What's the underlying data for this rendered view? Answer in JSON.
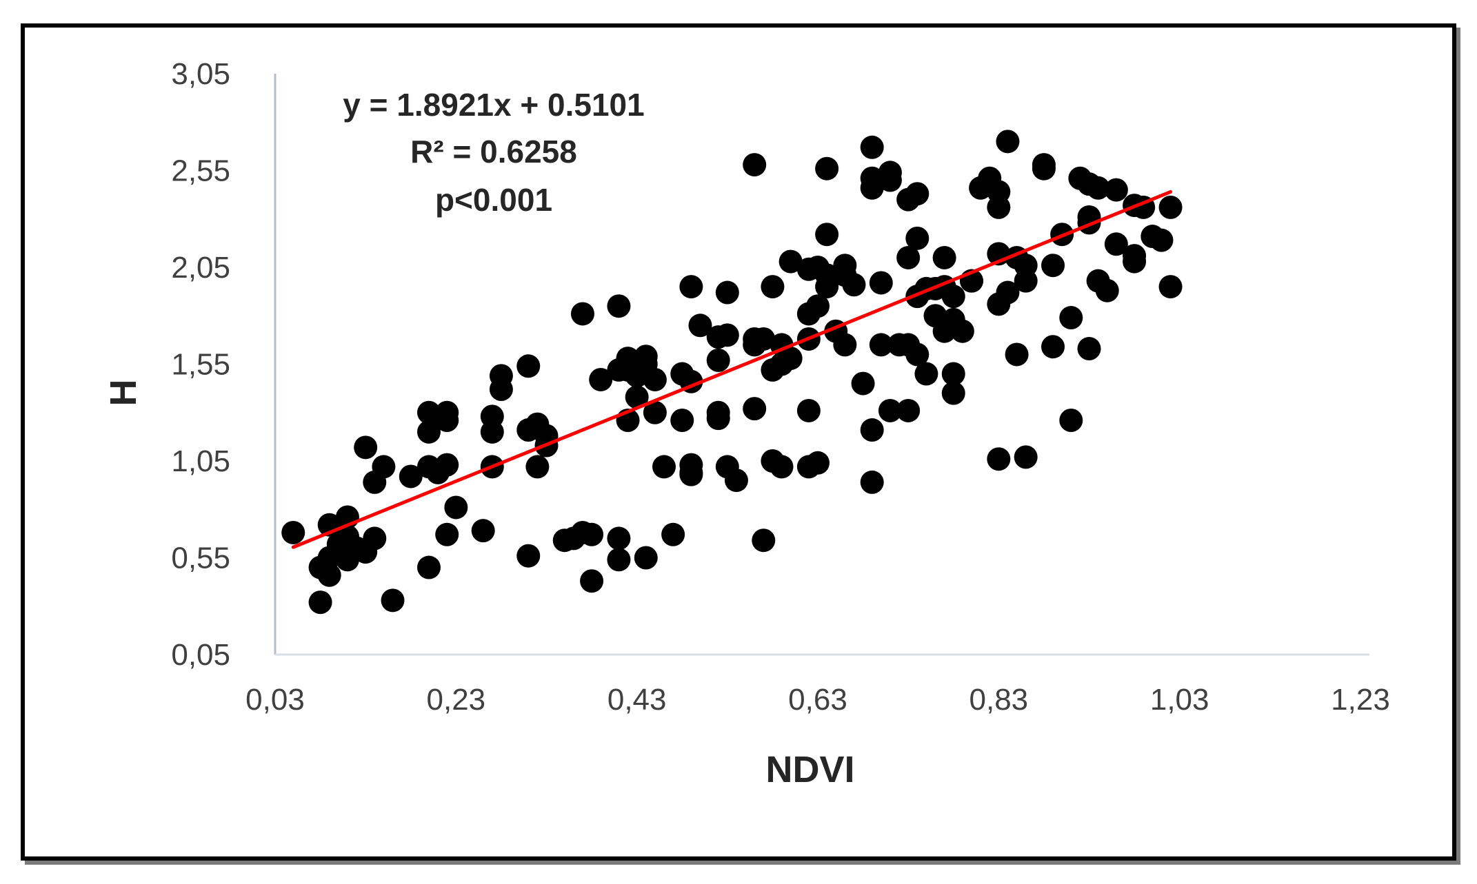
{
  "chart_data": {
    "type": "scatter",
    "xlabel": "NDVI",
    "ylabel": "H",
    "xlim": [
      0.03,
      1.23
    ],
    "ylim": [
      0.05,
      3.05
    ],
    "x_ticks": [
      "0,03",
      "0,23",
      "0,43",
      "0,63",
      "0,83",
      "1,03",
      "1,23"
    ],
    "y_ticks": [
      "0,05",
      "0,55",
      "1,05",
      "1,55",
      "2,05",
      "2,55",
      "3,05"
    ],
    "grid": false,
    "point_color": "#000000",
    "trendline": {
      "slope": 1.8921,
      "intercept": 0.5101,
      "x_range": [
        0.05,
        1.02
      ],
      "color": "#ff0000"
    },
    "annotations": [
      "y = 1.8921x + 0.5101",
      "R² = 0.6258",
      "p<0.001"
    ],
    "points": [
      [
        0.05,
        0.68
      ],
      [
        0.08,
        0.32
      ],
      [
        0.08,
        0.5
      ],
      [
        0.09,
        0.55
      ],
      [
        0.09,
        0.46
      ],
      [
        0.09,
        0.72
      ],
      [
        0.1,
        0.62
      ],
      [
        0.11,
        0.66
      ],
      [
        0.11,
        0.54
      ],
      [
        0.11,
        0.76
      ],
      [
        0.12,
        0.6
      ],
      [
        0.13,
        0.58
      ],
      [
        0.13,
        1.12
      ],
      [
        0.14,
        0.65
      ],
      [
        0.14,
        0.94
      ],
      [
        0.15,
        1.02
      ],
      [
        0.16,
        0.33
      ],
      [
        0.18,
        0.97
      ],
      [
        0.2,
        0.5
      ],
      [
        0.2,
        1.2
      ],
      [
        0.2,
        1.3
      ],
      [
        0.2,
        1.02
      ],
      [
        0.21,
        0.99
      ],
      [
        0.22,
        1.03
      ],
      [
        0.22,
        1.3
      ],
      [
        0.22,
        1.26
      ],
      [
        0.22,
        0.67
      ],
      [
        0.23,
        0.81
      ],
      [
        0.26,
        0.69
      ],
      [
        0.27,
        1.2
      ],
      [
        0.27,
        1.28
      ],
      [
        0.27,
        1.02
      ],
      [
        0.28,
        1.42
      ],
      [
        0.28,
        1.49
      ],
      [
        0.31,
        1.54
      ],
      [
        0.31,
        0.56
      ],
      [
        0.31,
        1.21
      ],
      [
        0.32,
        1.24
      ],
      [
        0.32,
        1.02
      ],
      [
        0.33,
        1.18
      ],
      [
        0.33,
        1.13
      ],
      [
        0.35,
        0.64
      ],
      [
        0.36,
        0.65
      ],
      [
        0.37,
        0.68
      ],
      [
        0.37,
        1.81
      ],
      [
        0.38,
        0.67
      ],
      [
        0.38,
        0.43
      ],
      [
        0.39,
        1.47
      ],
      [
        0.41,
        0.65
      ],
      [
        0.41,
        0.54
      ],
      [
        0.41,
        1.52
      ],
      [
        0.41,
        1.85
      ],
      [
        0.42,
        1.58
      ],
      [
        0.42,
        1.52
      ],
      [
        0.42,
        1.26
      ],
      [
        0.43,
        1.49
      ],
      [
        0.43,
        1.38
      ],
      [
        0.44,
        1.55
      ],
      [
        0.44,
        1.59
      ],
      [
        0.44,
        0.55
      ],
      [
        0.45,
        1.47
      ],
      [
        0.45,
        1.3
      ],
      [
        0.46,
        1.02
      ],
      [
        0.47,
        0.67
      ],
      [
        0.48,
        1.5
      ],
      [
        0.48,
        1.26
      ],
      [
        0.49,
        0.98
      ],
      [
        0.49,
        1.46
      ],
      [
        0.49,
        1.03
      ],
      [
        0.49,
        0.99
      ],
      [
        0.49,
        1.95
      ],
      [
        0.5,
        1.75
      ],
      [
        0.52,
        1.3
      ],
      [
        0.52,
        1.27
      ],
      [
        0.52,
        1.69
      ],
      [
        0.52,
        1.57
      ],
      [
        0.53,
        1.7
      ],
      [
        0.53,
        1.92
      ],
      [
        0.53,
        1.02
      ],
      [
        0.54,
        0.95
      ],
      [
        0.56,
        1.32
      ],
      [
        0.56,
        2.58
      ],
      [
        0.56,
        1.68
      ],
      [
        0.56,
        1.65
      ],
      [
        0.57,
        1.68
      ],
      [
        0.57,
        0.64
      ],
      [
        0.58,
        1.05
      ],
      [
        0.58,
        1.95
      ],
      [
        0.58,
        1.52
      ],
      [
        0.59,
        1.55
      ],
      [
        0.59,
        1.02
      ],
      [
        0.59,
        1.65
      ],
      [
        0.6,
        1.58
      ],
      [
        0.6,
        2.08
      ],
      [
        0.62,
        1.31
      ],
      [
        0.62,
        1.02
      ],
      [
        0.62,
        1.68
      ],
      [
        0.62,
        1.81
      ],
      [
        0.62,
        2.04
      ],
      [
        0.63,
        1.04
      ],
      [
        0.63,
        1.85
      ],
      [
        0.63,
        2.05
      ],
      [
        0.64,
        2.56
      ],
      [
        0.64,
        2.22
      ],
      [
        0.64,
        1.95
      ],
      [
        0.64,
        2.01
      ],
      [
        0.65,
        1.72
      ],
      [
        0.66,
        2.06
      ],
      [
        0.66,
        2.01
      ],
      [
        0.66,
        1.65
      ],
      [
        0.67,
        1.96
      ],
      [
        0.68,
        1.45
      ],
      [
        0.69,
        2.67
      ],
      [
        0.69,
        2.51
      ],
      [
        0.69,
        2.46
      ],
      [
        0.69,
        1.21
      ],
      [
        0.69,
        0.94
      ],
      [
        0.7,
        1.65
      ],
      [
        0.7,
        1.97
      ],
      [
        0.71,
        1.31
      ],
      [
        0.71,
        2.5
      ],
      [
        0.71,
        2.54
      ],
      [
        0.72,
        1.65
      ],
      [
        0.73,
        1.65
      ],
      [
        0.73,
        2.1
      ],
      [
        0.73,
        2.4
      ],
      [
        0.73,
        1.31
      ],
      [
        0.74,
        2.43
      ],
      [
        0.74,
        1.9
      ],
      [
        0.74,
        2.2
      ],
      [
        0.74,
        1.6
      ],
      [
        0.75,
        1.5
      ],
      [
        0.75,
        1.94
      ],
      [
        0.76,
        1.94
      ],
      [
        0.76,
        1.8
      ],
      [
        0.77,
        2.1
      ],
      [
        0.77,
        1.95
      ],
      [
        0.77,
        1.72
      ],
      [
        0.78,
        1.4
      ],
      [
        0.78,
        1.9
      ],
      [
        0.78,
        1.5
      ],
      [
        0.78,
        1.78
      ],
      [
        0.79,
        1.72
      ],
      [
        0.8,
        1.98
      ],
      [
        0.8,
        1.98
      ],
      [
        0.81,
        2.46
      ],
      [
        0.82,
        2.51
      ],
      [
        0.83,
        2.36
      ],
      [
        0.83,
        2.44
      ],
      [
        0.83,
        2.12
      ],
      [
        0.83,
        1.86
      ],
      [
        0.83,
        1.06
      ],
      [
        0.84,
        2.7
      ],
      [
        0.84,
        1.92
      ],
      [
        0.85,
        2.1
      ],
      [
        0.85,
        1.6
      ],
      [
        0.86,
        2.06
      ],
      [
        0.86,
        1.98
      ],
      [
        0.86,
        1.07
      ],
      [
        0.88,
        2.58
      ],
      [
        0.88,
        2.56
      ],
      [
        0.89,
        2.06
      ],
      [
        0.89,
        1.64
      ],
      [
        0.9,
        2.22
      ],
      [
        0.91,
        1.26
      ],
      [
        0.91,
        1.79
      ],
      [
        0.92,
        2.51
      ],
      [
        0.93,
        2.48
      ],
      [
        0.93,
        2.28
      ],
      [
        0.93,
        2.31
      ],
      [
        0.93,
        1.63
      ],
      [
        0.94,
        1.98
      ],
      [
        0.94,
        2.46
      ],
      [
        0.95,
        1.93
      ],
      [
        0.96,
        2.45
      ],
      [
        0.96,
        2.17
      ],
      [
        0.98,
        2.08
      ],
      [
        0.98,
        2.11
      ],
      [
        0.98,
        2.37
      ],
      [
        0.99,
        2.36
      ],
      [
        1.0,
        2.21
      ],
      [
        1.01,
        2.19
      ],
      [
        1.02,
        2.36
      ],
      [
        1.02,
        1.95
      ]
    ]
  }
}
